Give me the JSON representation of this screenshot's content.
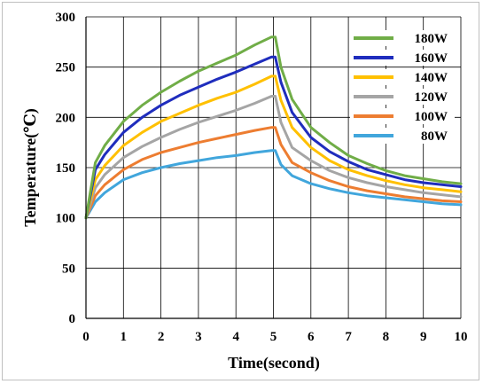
{
  "chart_data": {
    "type": "line",
    "xlabel": "Time(second)",
    "ylabel": "Temperature(℃)",
    "xlim": [
      0,
      10
    ],
    "ylim": [
      0,
      300
    ],
    "x_ticks": [
      "0",
      "1",
      "2",
      "3",
      "4",
      "5",
      "6",
      "7",
      "8",
      "9",
      "10"
    ],
    "y_ticks": [
      "0",
      "50",
      "100",
      "150",
      "200",
      "250",
      "300"
    ],
    "grid": true,
    "legend_position": "top-right",
    "x": [
      0,
      0.25,
      0.5,
      1,
      1.5,
      2,
      2.5,
      3,
      3.5,
      4,
      4.5,
      4.95,
      5.05,
      5.2,
      5.5,
      6,
      6.5,
      7,
      7.5,
      8,
      8.5,
      9,
      9.5,
      10
    ],
    "series": [
      {
        "name": "180W",
        "color": "#70ad47",
        "values": [
          100,
          155,
          172,
          196,
          212,
          225,
          236,
          246,
          254,
          262,
          272,
          280,
          280,
          250,
          218,
          190,
          175,
          162,
          154,
          147,
          142,
          139,
          136,
          134
        ]
      },
      {
        "name": "160W",
        "color": "#1f2dbd",
        "values": [
          100,
          148,
          163,
          185,
          200,
          212,
          222,
          230,
          238,
          245,
          253,
          260,
          260,
          235,
          205,
          180,
          166,
          156,
          148,
          143,
          138,
          135,
          133,
          131
        ]
      },
      {
        "name": "140W",
        "color": "#ffc000",
        "values": [
          100,
          138,
          152,
          172,
          185,
          196,
          204,
          212,
          219,
          225,
          233,
          241,
          241,
          217,
          190,
          170,
          157,
          148,
          142,
          137,
          133,
          130,
          128,
          126
        ]
      },
      {
        "name": "120W",
        "color": "#a5a5a5",
        "values": [
          100,
          130,
          143,
          160,
          171,
          180,
          188,
          195,
          201,
          207,
          214,
          221,
          221,
          195,
          170,
          157,
          147,
          140,
          135,
          131,
          128,
          125,
          123,
          121
        ]
      },
      {
        "name": "100W",
        "color": "#ed7d31",
        "values": [
          100,
          122,
          133,
          148,
          158,
          165,
          170,
          175,
          179,
          183,
          187,
          190,
          190,
          173,
          155,
          145,
          137,
          131,
          127,
          124,
          121,
          119,
          117,
          116
        ]
      },
      {
        "name": "80W",
        "color": "#41a6dc",
        "values": [
          100,
          116,
          125,
          138,
          145,
          150,
          154,
          157,
          160,
          162,
          165,
          167,
          167,
          153,
          142,
          134,
          129,
          125,
          122,
          120,
          118,
          116,
          114,
          113
        ]
      }
    ]
  }
}
